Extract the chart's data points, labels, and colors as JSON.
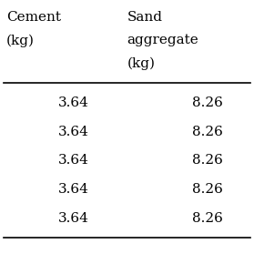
{
  "col1_header": [
    "Cement",
    "(kg)"
  ],
  "col2_header": [
    "Sand",
    "aggregate",
    "(kg)"
  ],
  "col1_data": [
    "3.64",
    "3.64",
    "3.64",
    "3.64",
    "3.64"
  ],
  "col2_data": [
    "8.26",
    "8.26",
    "8.26",
    "8.26",
    "8.26"
  ],
  "bg_color": "#ffffff",
  "text_color": "#000000",
  "font_size": 11
}
